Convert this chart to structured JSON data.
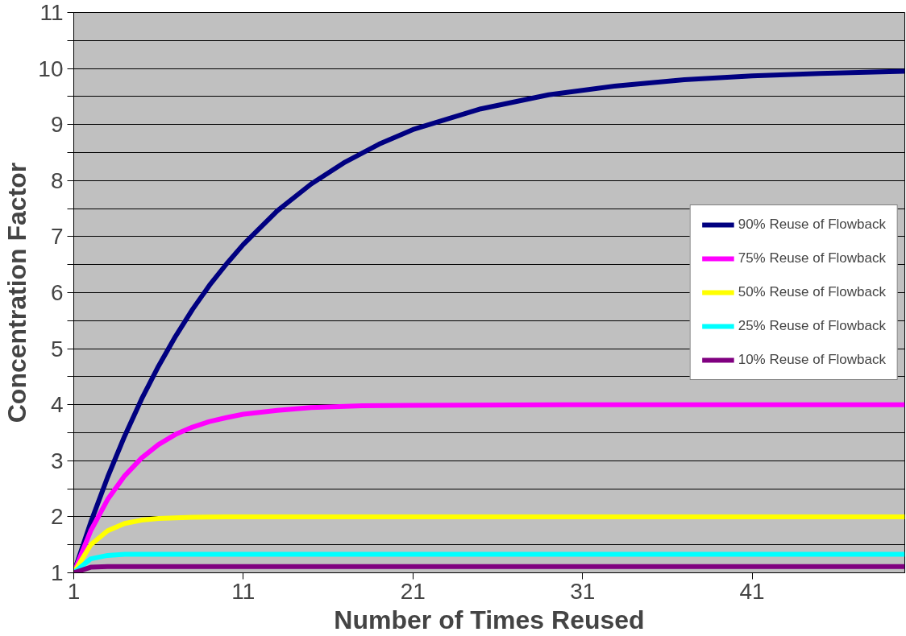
{
  "chart_data": {
    "type": "line",
    "xlabel": "Number of Times Reused",
    "ylabel": "Concentration Factor",
    "xlim": [
      1,
      50
    ],
    "xticks": [
      1,
      11,
      21,
      31,
      41
    ],
    "ylim": [
      1,
      11
    ],
    "yticks": [
      1,
      {
        "value": 1.5,
        "label": null
      },
      2,
      {
        "value": 2.5,
        "label": null
      },
      3,
      {
        "value": 3.5,
        "label": null
      },
      4,
      {
        "value": 4.5,
        "label": null
      },
      5,
      {
        "value": 5.5,
        "label": null
      },
      6,
      {
        "value": 6.5,
        "label": null
      },
      7,
      {
        "value": 7.5,
        "label": null
      },
      8,
      {
        "value": 8.5,
        "label": null
      },
      9,
      {
        "value": 9.5,
        "label": null
      },
      10,
      {
        "value": 10.5,
        "label": null
      },
      11
    ],
    "grid": "y",
    "legend": "top right",
    "marker": "none",
    "line_style": "solid",
    "series": [
      {
        "name": "90% Reuse of Flowback",
        "color": "#000080",
        "x": [
          1,
          2,
          3,
          4,
          5,
          6,
          7,
          8,
          9,
          10,
          11,
          13,
          15,
          17,
          19,
          21,
          25,
          29,
          33,
          37,
          41,
          45,
          50
        ],
        "values": [
          1,
          1.9,
          2.71,
          3.44,
          4.1,
          4.69,
          5.22,
          5.7,
          6.13,
          6.51,
          6.86,
          7.46,
          7.94,
          8.33,
          8.65,
          8.91,
          9.28,
          9.53,
          9.69,
          9.8,
          9.87,
          9.91,
          9.95
        ]
      },
      {
        "name": "75% Reuse of Flowback",
        "color": "#ff00ff",
        "x": [
          1,
          2,
          3,
          4,
          5,
          6,
          7,
          8,
          9,
          10,
          11,
          13,
          15,
          18,
          21,
          30,
          40,
          50
        ],
        "values": [
          1,
          1.75,
          2.31,
          2.73,
          3.05,
          3.29,
          3.47,
          3.6,
          3.7,
          3.77,
          3.83,
          3.9,
          3.95,
          3.98,
          3.99,
          4.0,
          4.0,
          4.0
        ]
      },
      {
        "name": "50% Reuse of Flowback",
        "color": "#ffff00",
        "x": [
          1,
          2,
          3,
          4,
          5,
          6,
          7,
          8,
          10,
          20,
          50
        ],
        "values": [
          1,
          1.5,
          1.75,
          1.88,
          1.94,
          1.97,
          1.98,
          1.99,
          2.0,
          2.0,
          2.0
        ]
      },
      {
        "name": "25% Reuse of Flowback",
        "color": "#00ffff",
        "x": [
          1,
          2,
          3,
          4,
          6,
          10,
          50
        ],
        "values": [
          1,
          1.25,
          1.31,
          1.33,
          1.33,
          1.33,
          1.33
        ]
      },
      {
        "name": "10% Reuse of Flowback",
        "color": "#800080",
        "x": [
          1,
          2,
          3,
          5,
          10,
          50
        ],
        "values": [
          1,
          1.1,
          1.11,
          1.11,
          1.11,
          1.11
        ]
      }
    ]
  }
}
